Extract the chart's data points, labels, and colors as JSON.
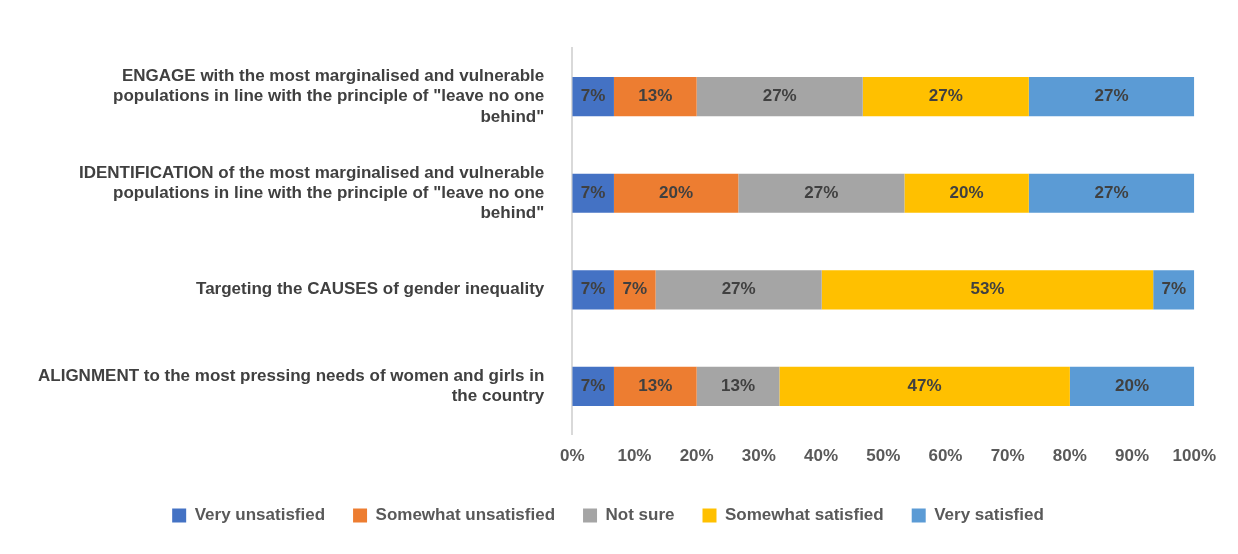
{
  "chart_data": {
    "type": "bar",
    "orientation": "horizontal",
    "stacked": true,
    "categories": [
      "ENGAGE with the most marginalised and vulnerable populations in line with the principle of \"leave no one behind\"",
      "IDENTIFICATION of the most marginalised and vulnerable populations in line with the principle of \"leave no one behind\"",
      "Targeting the CAUSES of gender inequality",
      "ALIGNMENT to the most pressing needs of women and girls in the country"
    ],
    "series": [
      {
        "name": "Very unsatisfied",
        "color": "#4472c4",
        "values": [
          6.7,
          6.7,
          6.7,
          6.7
        ],
        "value_labels": [
          "7%",
          "7%",
          "7%",
          "7%"
        ]
      },
      {
        "name": "Somewhat unsatisfied",
        "color": "#ed7d31",
        "values": [
          13.3,
          20,
          6.7,
          13.3
        ],
        "value_labels": [
          "13%",
          "20%",
          "7%",
          "13%"
        ]
      },
      {
        "name": "Not sure",
        "color": "#a5a5a5",
        "values": [
          26.7,
          26.7,
          26.7,
          13.3
        ],
        "value_labels": [
          "27%",
          "27%",
          "27%",
          "13%"
        ]
      },
      {
        "name": "Somewhat satisfied",
        "color": "#ffc000",
        "values": [
          26.7,
          20,
          53.3,
          46.7
        ],
        "value_labels": [
          "27%",
          "20%",
          "53%",
          "47%"
        ]
      },
      {
        "name": "Very satisfied",
        "color": "#5b9bd5",
        "values": [
          26.6,
          26.6,
          6.6,
          20
        ],
        "value_labels": [
          "27%",
          "27%",
          "7%",
          "20%"
        ]
      }
    ],
    "xlim": [
      0,
      100
    ],
    "xticks": [
      {
        "value": 0,
        "label": "0%"
      },
      {
        "value": 10,
        "label": "10%"
      },
      {
        "value": 20,
        "label": "20%"
      },
      {
        "value": 30,
        "label": "30%"
      },
      {
        "value": 40,
        "label": "40%"
      },
      {
        "value": 50,
        "label": "50%"
      },
      {
        "value": 60,
        "label": "60%"
      },
      {
        "value": 70,
        "label": "70%"
      },
      {
        "value": 80,
        "label": "80%"
      },
      {
        "value": 90,
        "label": "90%"
      },
      {
        "value": 100,
        "label": "100%"
      }
    ],
    "grid": false,
    "legend": "bottom"
  }
}
